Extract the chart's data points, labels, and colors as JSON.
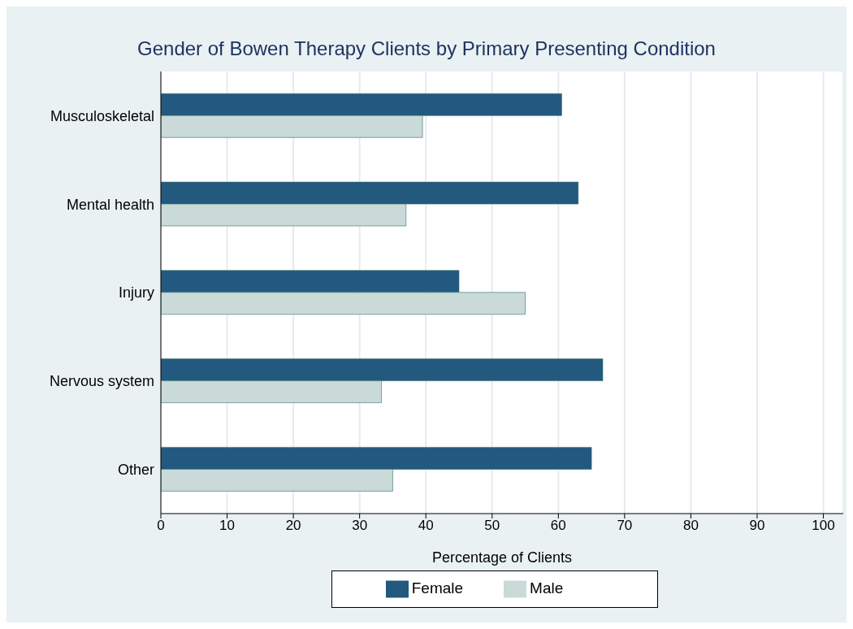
{
  "chart_data": {
    "type": "bar",
    "orientation": "horizontal",
    "title": "Gender of Bowen Therapy Clients by Primary Presenting Condition",
    "xlabel": "Percentage of Clients",
    "categories": [
      "Musculoskeletal",
      "Mental health",
      "Injury",
      "Nervous system",
      "Other"
    ],
    "series": [
      {
        "name": "Female",
        "color": "#23587f",
        "values": [
          60.5,
          63,
          45,
          66.7,
          65
        ]
      },
      {
        "name": "Male",
        "color": "#c9dad8",
        "values": [
          39.5,
          37,
          55,
          33.3,
          35
        ]
      }
    ],
    "xlim": [
      0,
      103
    ],
    "xticks": [
      0,
      10,
      20,
      30,
      40,
      50,
      60,
      70,
      80,
      90,
      100
    ],
    "grid": "x",
    "legend": "bottom"
  }
}
